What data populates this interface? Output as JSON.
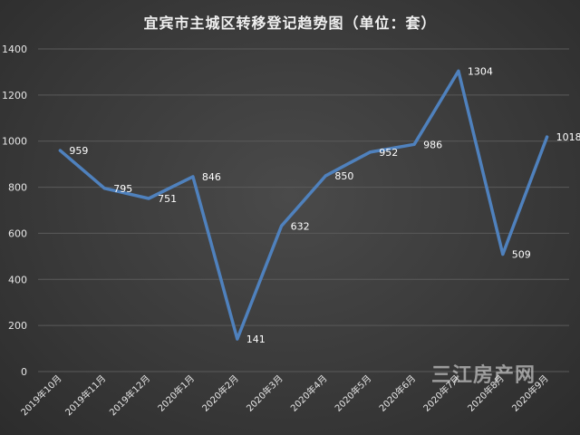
{
  "watermark": "三江房产网",
  "colors": {
    "line": "#4f81bd",
    "grid": "#5a5a5a",
    "text": "#e6e6e6"
  },
  "chart_data": {
    "type": "line",
    "title": "宜宾市主城区转移登记趋势图（单位：套）",
    "xlabel": "",
    "ylabel": "",
    "ylim": [
      0,
      1400
    ],
    "yticks": [
      0,
      200,
      400,
      600,
      800,
      1000,
      1200,
      1400
    ],
    "grid": true,
    "categories": [
      "2019年10月",
      "2019年11月",
      "2019年12月",
      "2020年1月",
      "2020年2月",
      "2020年3月",
      "2020年4月",
      "2020年5月",
      "2020年6月",
      "2020年7月",
      "2020年8月",
      "2020年9月"
    ],
    "series": [
      {
        "values": [
          959,
          795,
          751,
          846,
          141,
          632,
          850,
          952,
          986,
          1304,
          509,
          1018
        ]
      }
    ]
  }
}
